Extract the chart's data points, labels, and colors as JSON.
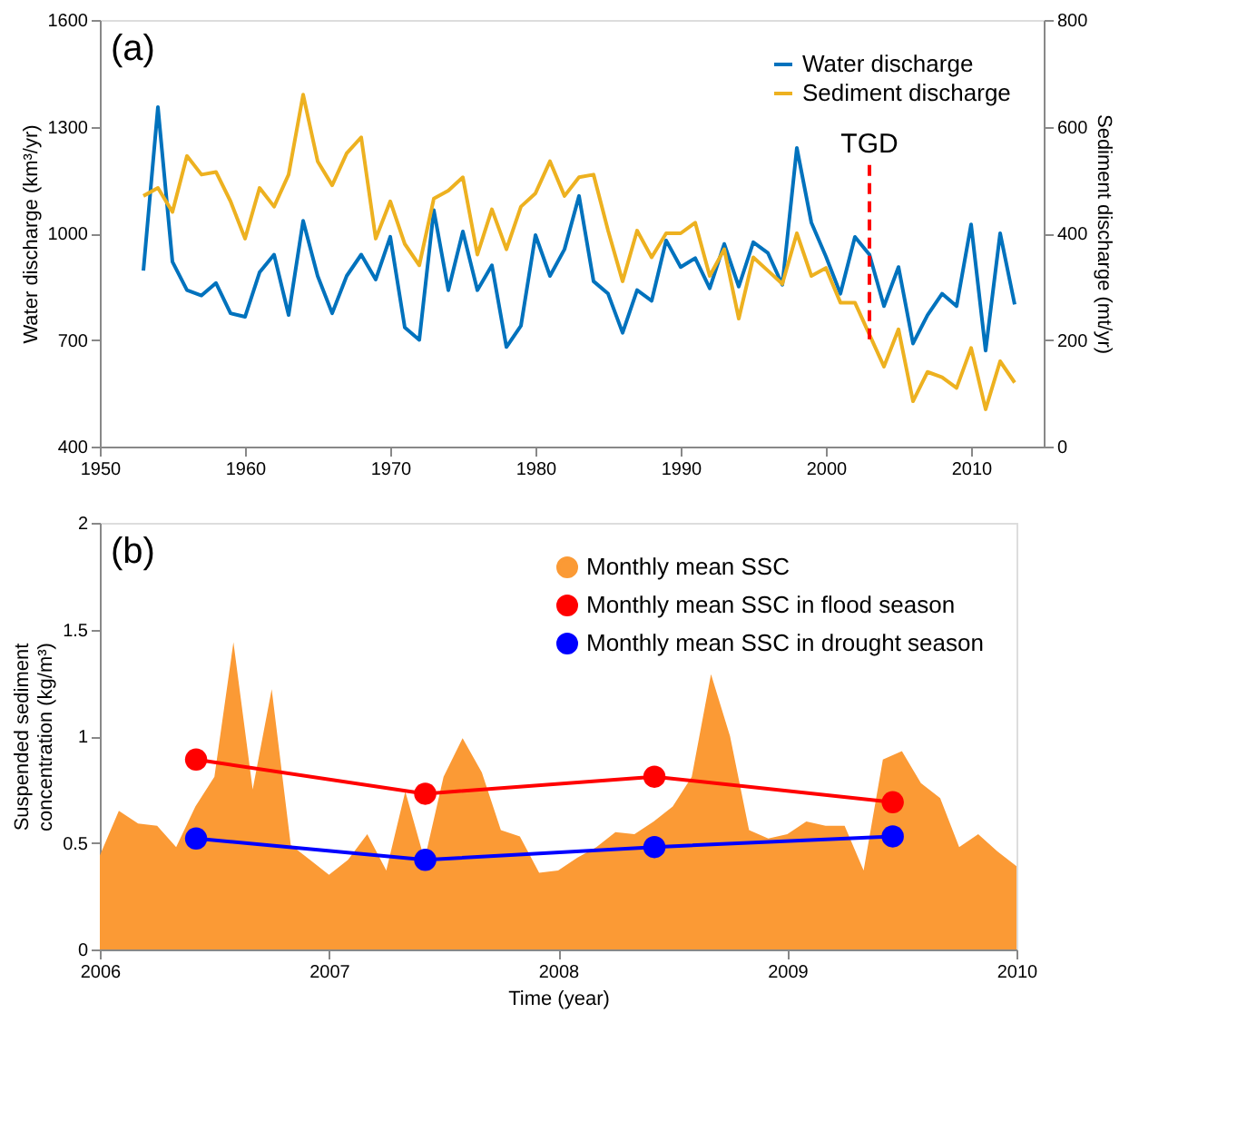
{
  "chart_data": [
    {
      "type": "line",
      "annotations": [
        "(a)"
      ],
      "ylabel": "Water discharge (km³/yr)",
      "y2label": "Sediment discharge (mt/yr)",
      "x": [
        1953,
        1954,
        1955,
        1956,
        1957,
        1958,
        1959,
        1960,
        1961,
        1962,
        1963,
        1964,
        1965,
        1966,
        1967,
        1968,
        1969,
        1970,
        1971,
        1972,
        1973,
        1974,
        1975,
        1976,
        1977,
        1978,
        1979,
        1980,
        1981,
        1982,
        1983,
        1984,
        1985,
        1986,
        1987,
        1988,
        1989,
        1990,
        1991,
        1992,
        1993,
        1994,
        1995,
        1996,
        1997,
        1998,
        1999,
        2000,
        2001,
        2002,
        2003,
        2004,
        2005,
        2006,
        2007,
        2008,
        2009,
        2010,
        2011,
        2012,
        2013
      ],
      "series": [
        {
          "name": "Water discharge",
          "color": "#0072bd",
          "values": [
            895,
            1355,
            920,
            840,
            825,
            860,
            775,
            765,
            890,
            940,
            770,
            1035,
            880,
            775,
            880,
            940,
            870,
            990,
            735,
            700,
            1065,
            840,
            1005,
            840,
            910,
            680,
            740,
            995,
            880,
            955,
            1105,
            865,
            830,
            720,
            840,
            810,
            980,
            905,
            930,
            845,
            970,
            850,
            975,
            945,
            855,
            1240,
            1030,
            935,
            830,
            990,
            940,
            795,
            905,
            690,
            770,
            830,
            795,
            1025,
            670,
            1000,
            800
          ]
        },
        {
          "name": "Sediment discharge",
          "color": "#edb120",
          "axis": "y2",
          "values": [
            470,
            485,
            440,
            545,
            510,
            515,
            460,
            390,
            485,
            450,
            510,
            660,
            535,
            490,
            550,
            580,
            390,
            460,
            380,
            340,
            465,
            480,
            505,
            360,
            445,
            370,
            450,
            475,
            535,
            470,
            505,
            510,
            405,
            310,
            405,
            355,
            400,
            400,
            420,
            320,
            370,
            240,
            355,
            330,
            305,
            400,
            320,
            335,
            270,
            270,
            210,
            150,
            220,
            85,
            140,
            130,
            110,
            185,
            70,
            160,
            120
          ]
        }
      ],
      "xlim": [
        1950,
        2015
      ],
      "xticks": [
        1950,
        1960,
        1970,
        1980,
        1990,
        2000,
        2010
      ],
      "ylim": [
        400,
        1600
      ],
      "yticks": [
        400,
        700,
        1000,
        1300,
        1600
      ],
      "y2lim": [
        0,
        800
      ],
      "y2ticks": [
        0,
        200,
        400,
        600,
        800
      ],
      "ref_lines": [
        {
          "axis": "x",
          "value": 2003,
          "label": "TGD",
          "color": "#ff0000",
          "line_style": "dashed"
        }
      ],
      "legend": "top right"
    },
    {
      "type": "area",
      "annotations": [
        "(b)"
      ],
      "xlabel": "Time (year)",
      "ylabel": "Suspended sediment concentration (kg/m³)",
      "x": [
        2006,
        2006.083,
        2006.167,
        2006.25,
        2006.333,
        2006.417,
        2006.5,
        2006.583,
        2006.667,
        2006.75,
        2006.833,
        2006.917,
        2007,
        2007.083,
        2007.167,
        2007.25,
        2007.333,
        2007.417,
        2007.5,
        2007.583,
        2007.667,
        2007.75,
        2007.833,
        2007.917,
        2008,
        2008.083,
        2008.167,
        2008.25,
        2008.333,
        2008.417,
        2008.5,
        2008.583,
        2008.667,
        2008.75,
        2008.833,
        2008.917,
        2009,
        2009.083,
        2009.167,
        2009.25,
        2009.333,
        2009.417,
        2009.5,
        2009.583,
        2009.667,
        2009.75,
        2009.833,
        2009.917,
        2010
      ],
      "series": [
        {
          "name": "Monthly mean SSC",
          "color": "#fb9a35",
          "type": "area",
          "values": [
            0.44,
            0.65,
            0.59,
            0.58,
            0.48,
            0.67,
            0.81,
            1.44,
            0.75,
            1.22,
            0.49,
            0.42,
            0.35,
            0.42,
            0.54,
            0.37,
            0.74,
            0.42,
            0.81,
            0.99,
            0.83,
            0.56,
            0.53,
            0.36,
            0.37,
            0.43,
            0.48,
            0.55,
            0.54,
            0.6,
            0.67,
            0.81,
            1.29,
            1.0,
            0.56,
            0.52,
            0.54,
            0.6,
            0.58,
            0.58,
            0.37,
            0.89,
            0.93,
            0.78,
            0.71,
            0.48,
            0.54,
            0.46,
            0.39
          ]
        },
        {
          "name": "Monthly mean SSC in flood season",
          "color": "#ff0000",
          "type": "line",
          "marker": "circle",
          "x": [
            2006.42,
            2007.42,
            2008.42,
            2009.46
          ],
          "values": [
            0.89,
            0.73,
            0.81,
            0.69
          ]
        },
        {
          "name": "Monthly mean SSC in drought season",
          "color": "#0000ff",
          "type": "line",
          "marker": "circle",
          "x": [
            2006.42,
            2007.42,
            2008.42,
            2009.46
          ],
          "values": [
            0.52,
            0.42,
            0.48,
            0.53
          ]
        }
      ],
      "xlim": [
        2006,
        2010
      ],
      "xticks": [
        2006,
        2007,
        2008,
        2009,
        2010
      ],
      "ylim": [
        0,
        2
      ],
      "yticks": [
        0,
        0.5,
        1,
        1.5,
        2
      ],
      "legend": "top right"
    }
  ]
}
